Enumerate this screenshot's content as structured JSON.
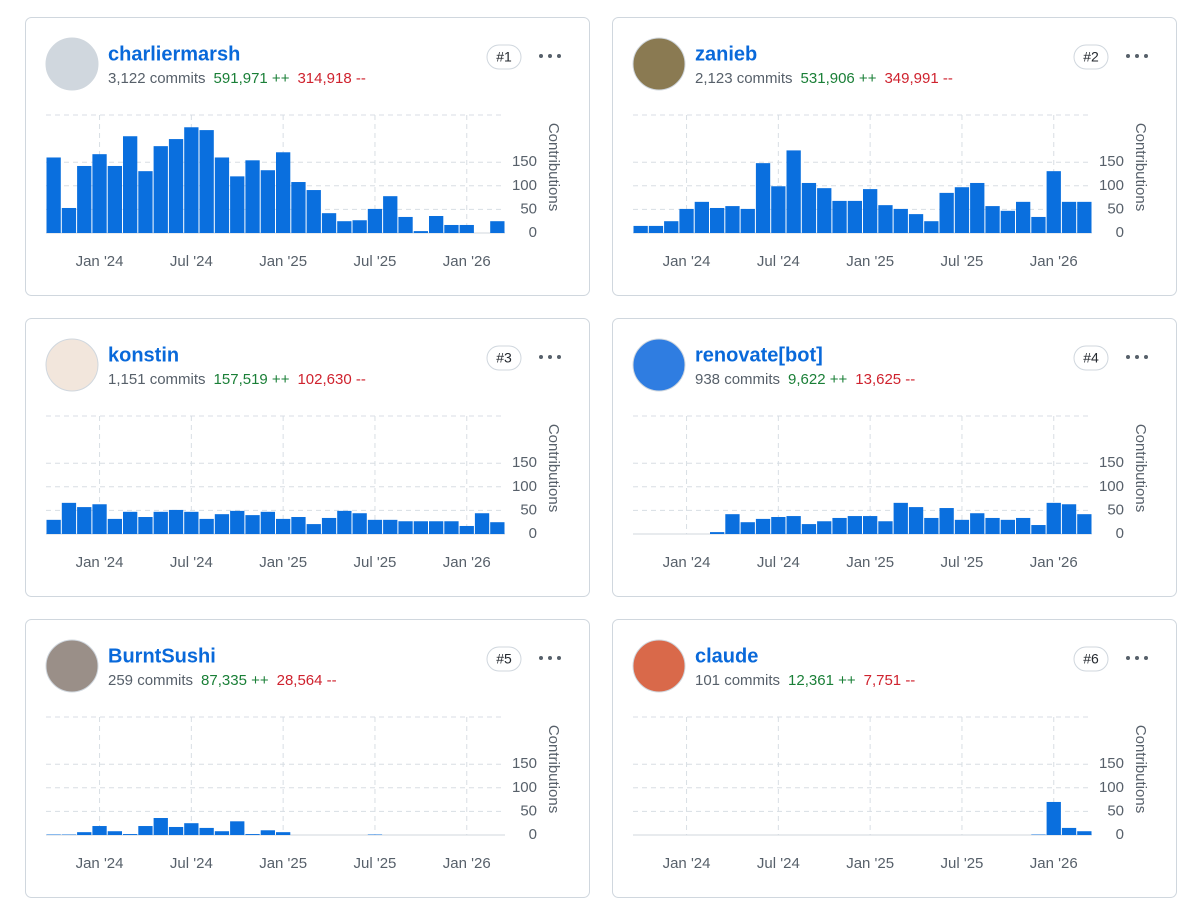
{
  "contributors": [
    {
      "name": "charliermarsh",
      "rank": "#1",
      "commits": "3,122 commits",
      "additions": "591,971 ++",
      "deletions": "314,918 --"
    },
    {
      "name": "zanieb",
      "rank": "#2",
      "commits": "2,123 commits",
      "additions": "531,906 ++",
      "deletions": "349,991 --"
    },
    {
      "name": "konstin",
      "rank": "#3",
      "commits": "1,151 commits",
      "additions": "157,519 ++",
      "deletions": "102,630 --"
    },
    {
      "name": "renovate[bot]",
      "rank": "#4",
      "commits": "938 commits",
      "additions": "9,622 ++",
      "deletions": "13,625 --"
    },
    {
      "name": "BurntSushi",
      "rank": "#5",
      "commits": "259 commits",
      "additions": "87,335 ++",
      "deletions": "28,564 --"
    },
    {
      "name": "claude",
      "rank": "#6",
      "commits": "101 commits",
      "additions": "12,361 ++",
      "deletions": "7,751 --"
    }
  ],
  "chart_data": [
    {
      "type": "bar",
      "ylabel": "Contributions",
      "color": "#0a6fde",
      "grid": true,
      "ylim": [
        0,
        250
      ],
      "yticks": [
        0,
        50,
        100,
        150
      ],
      "x": [
        "2023-10",
        "2023-11",
        "2023-12",
        "2024-01",
        "2024-02",
        "2024-03",
        "2024-04",
        "2024-05",
        "2024-06",
        "2024-07",
        "2024-08",
        "2024-09",
        "2024-10",
        "2024-11",
        "2024-12",
        "2025-01",
        "2025-02",
        "2025-03",
        "2025-04",
        "2025-05",
        "2025-06",
        "2025-07",
        "2025-08",
        "2025-09",
        "2025-10",
        "2025-11",
        "2025-12",
        "2026-01",
        "2026-02",
        "2026-03"
      ],
      "xticks": [
        {
          "value": "2024-01",
          "label": "Jan '24"
        },
        {
          "value": "2024-07",
          "label": "Jul '24"
        },
        {
          "value": "2025-01",
          "label": "Jan '25"
        },
        {
          "value": "2025-07",
          "label": "Jul '25"
        },
        {
          "value": "2026-01",
          "label": "Jan '26"
        }
      ],
      "values": [
        160,
        53,
        142,
        167,
        142,
        205,
        131,
        184,
        199,
        224,
        218,
        160,
        120,
        154,
        133,
        171,
        108,
        91,
        42,
        25,
        27,
        51,
        78,
        34,
        4,
        36,
        17,
        17,
        0,
        25
      ]
    },
    {
      "type": "bar",
      "ylabel": "Contributions",
      "color": "#0a6fde",
      "grid": true,
      "ylim": [
        0,
        250
      ],
      "yticks": [
        0,
        50,
        100,
        150
      ],
      "x": [
        "2023-10",
        "2023-11",
        "2023-12",
        "2024-01",
        "2024-02",
        "2024-03",
        "2024-04",
        "2024-05",
        "2024-06",
        "2024-07",
        "2024-08",
        "2024-09",
        "2024-10",
        "2024-11",
        "2024-12",
        "2025-01",
        "2025-02",
        "2025-03",
        "2025-04",
        "2025-05",
        "2025-06",
        "2025-07",
        "2025-08",
        "2025-09",
        "2025-10",
        "2025-11",
        "2025-12",
        "2026-01",
        "2026-02",
        "2026-03"
      ],
      "xticks": [
        {
          "value": "2024-01",
          "label": "Jan '24"
        },
        {
          "value": "2024-07",
          "label": "Jul '24"
        },
        {
          "value": "2025-01",
          "label": "Jan '25"
        },
        {
          "value": "2025-07",
          "label": "Jul '25"
        },
        {
          "value": "2026-01",
          "label": "Jan '26"
        }
      ],
      "values": [
        15,
        15,
        25,
        51,
        66,
        53,
        57,
        51,
        148,
        99,
        175,
        106,
        95,
        68,
        68,
        93,
        59,
        51,
        40,
        25,
        85,
        97,
        106,
        57,
        47,
        66,
        34,
        131,
        66,
        66
      ]
    },
    {
      "type": "bar",
      "ylabel": "Contributions",
      "color": "#0a6fde",
      "grid": true,
      "ylim": [
        0,
        250
      ],
      "yticks": [
        0,
        50,
        100,
        150
      ],
      "x": [
        "2023-10",
        "2023-11",
        "2023-12",
        "2024-01",
        "2024-02",
        "2024-03",
        "2024-04",
        "2024-05",
        "2024-06",
        "2024-07",
        "2024-08",
        "2024-09",
        "2024-10",
        "2024-11",
        "2024-12",
        "2025-01",
        "2025-02",
        "2025-03",
        "2025-04",
        "2025-05",
        "2025-06",
        "2025-07",
        "2025-08",
        "2025-09",
        "2025-10",
        "2025-11",
        "2025-12",
        "2026-01",
        "2026-02",
        "2026-03"
      ],
      "xticks": [
        {
          "value": "2024-01",
          "label": "Jan '24"
        },
        {
          "value": "2024-07",
          "label": "Jul '24"
        },
        {
          "value": "2025-01",
          "label": "Jan '25"
        },
        {
          "value": "2025-07",
          "label": "Jul '25"
        },
        {
          "value": "2026-01",
          "label": "Jan '26"
        }
      ],
      "values": [
        30,
        66,
        57,
        63,
        32,
        47,
        36,
        47,
        51,
        47,
        32,
        42,
        49,
        40,
        47,
        32,
        36,
        21,
        34,
        49,
        44,
        30,
        30,
        27,
        27,
        27,
        27,
        17,
        44,
        25
      ]
    },
    {
      "type": "bar",
      "ylabel": "Contributions",
      "color": "#0a6fde",
      "grid": true,
      "ylim": [
        0,
        250
      ],
      "yticks": [
        0,
        50,
        100,
        150
      ],
      "x": [
        "2023-10",
        "2023-11",
        "2023-12",
        "2024-01",
        "2024-02",
        "2024-03",
        "2024-04",
        "2024-05",
        "2024-06",
        "2024-07",
        "2024-08",
        "2024-09",
        "2024-10",
        "2024-11",
        "2024-12",
        "2025-01",
        "2025-02",
        "2025-03",
        "2025-04",
        "2025-05",
        "2025-06",
        "2025-07",
        "2025-08",
        "2025-09",
        "2025-10",
        "2025-11",
        "2025-12",
        "2026-01",
        "2026-02",
        "2026-03"
      ],
      "xticks": [
        {
          "value": "2024-01",
          "label": "Jan '24"
        },
        {
          "value": "2024-07",
          "label": "Jul '24"
        },
        {
          "value": "2025-01",
          "label": "Jan '25"
        },
        {
          "value": "2025-07",
          "label": "Jul '25"
        },
        {
          "value": "2026-01",
          "label": "Jan '26"
        }
      ],
      "values": [
        0,
        0,
        0,
        0,
        0,
        4,
        42,
        25,
        32,
        36,
        38,
        21,
        27,
        34,
        38,
        38,
        27,
        66,
        57,
        34,
        55,
        30,
        44,
        34,
        30,
        34,
        19,
        66,
        63,
        42
      ]
    },
    {
      "type": "bar",
      "ylabel": "Contributions",
      "color": "#0a6fde",
      "grid": true,
      "ylim": [
        0,
        250
      ],
      "yticks": [
        0,
        50,
        100,
        150
      ],
      "x": [
        "2023-10",
        "2023-11",
        "2023-12",
        "2024-01",
        "2024-02",
        "2024-03",
        "2024-04",
        "2024-05",
        "2024-06",
        "2024-07",
        "2024-08",
        "2024-09",
        "2024-10",
        "2024-11",
        "2024-12",
        "2025-01",
        "2025-02",
        "2025-03",
        "2025-04",
        "2025-05",
        "2025-06",
        "2025-07",
        "2025-08",
        "2025-09",
        "2025-10",
        "2025-11",
        "2025-12",
        "2026-01",
        "2026-02",
        "2026-03"
      ],
      "xticks": [
        {
          "value": "2024-01",
          "label": "Jan '24"
        },
        {
          "value": "2024-07",
          "label": "Jul '24"
        },
        {
          "value": "2025-01",
          "label": "Jan '25"
        },
        {
          "value": "2025-07",
          "label": "Jul '25"
        },
        {
          "value": "2026-01",
          "label": "Jan '26"
        }
      ],
      "values": [
        1,
        1,
        6,
        19,
        8,
        2,
        19,
        36,
        17,
        25,
        15,
        8,
        29,
        2,
        10,
        6,
        0,
        0,
        0,
        0,
        0,
        1,
        0,
        0,
        0,
        0,
        0,
        0,
        0,
        0
      ]
    },
    {
      "type": "bar",
      "ylabel": "Contributions",
      "color": "#0a6fde",
      "grid": true,
      "ylim": [
        0,
        250
      ],
      "yticks": [
        0,
        50,
        100,
        150
      ],
      "x": [
        "2023-10",
        "2023-11",
        "2023-12",
        "2024-01",
        "2024-02",
        "2024-03",
        "2024-04",
        "2024-05",
        "2024-06",
        "2024-07",
        "2024-08",
        "2024-09",
        "2024-10",
        "2024-11",
        "2024-12",
        "2025-01",
        "2025-02",
        "2025-03",
        "2025-04",
        "2025-05",
        "2025-06",
        "2025-07",
        "2025-08",
        "2025-09",
        "2025-10",
        "2025-11",
        "2025-12",
        "2026-01",
        "2026-02",
        "2026-03"
      ],
      "xticks": [
        {
          "value": "2024-01",
          "label": "Jan '24"
        },
        {
          "value": "2024-07",
          "label": "Jul '24"
        },
        {
          "value": "2025-01",
          "label": "Jan '25"
        },
        {
          "value": "2025-07",
          "label": "Jul '25"
        },
        {
          "value": "2026-01",
          "label": "Jan '26"
        }
      ],
      "values": [
        0,
        0,
        0,
        0,
        0,
        0,
        0,
        0,
        0,
        0,
        0,
        0,
        0,
        0,
        0,
        0,
        0,
        0,
        0,
        0,
        0,
        0,
        0,
        0,
        0,
        0,
        1,
        70,
        15,
        8
      ]
    }
  ]
}
